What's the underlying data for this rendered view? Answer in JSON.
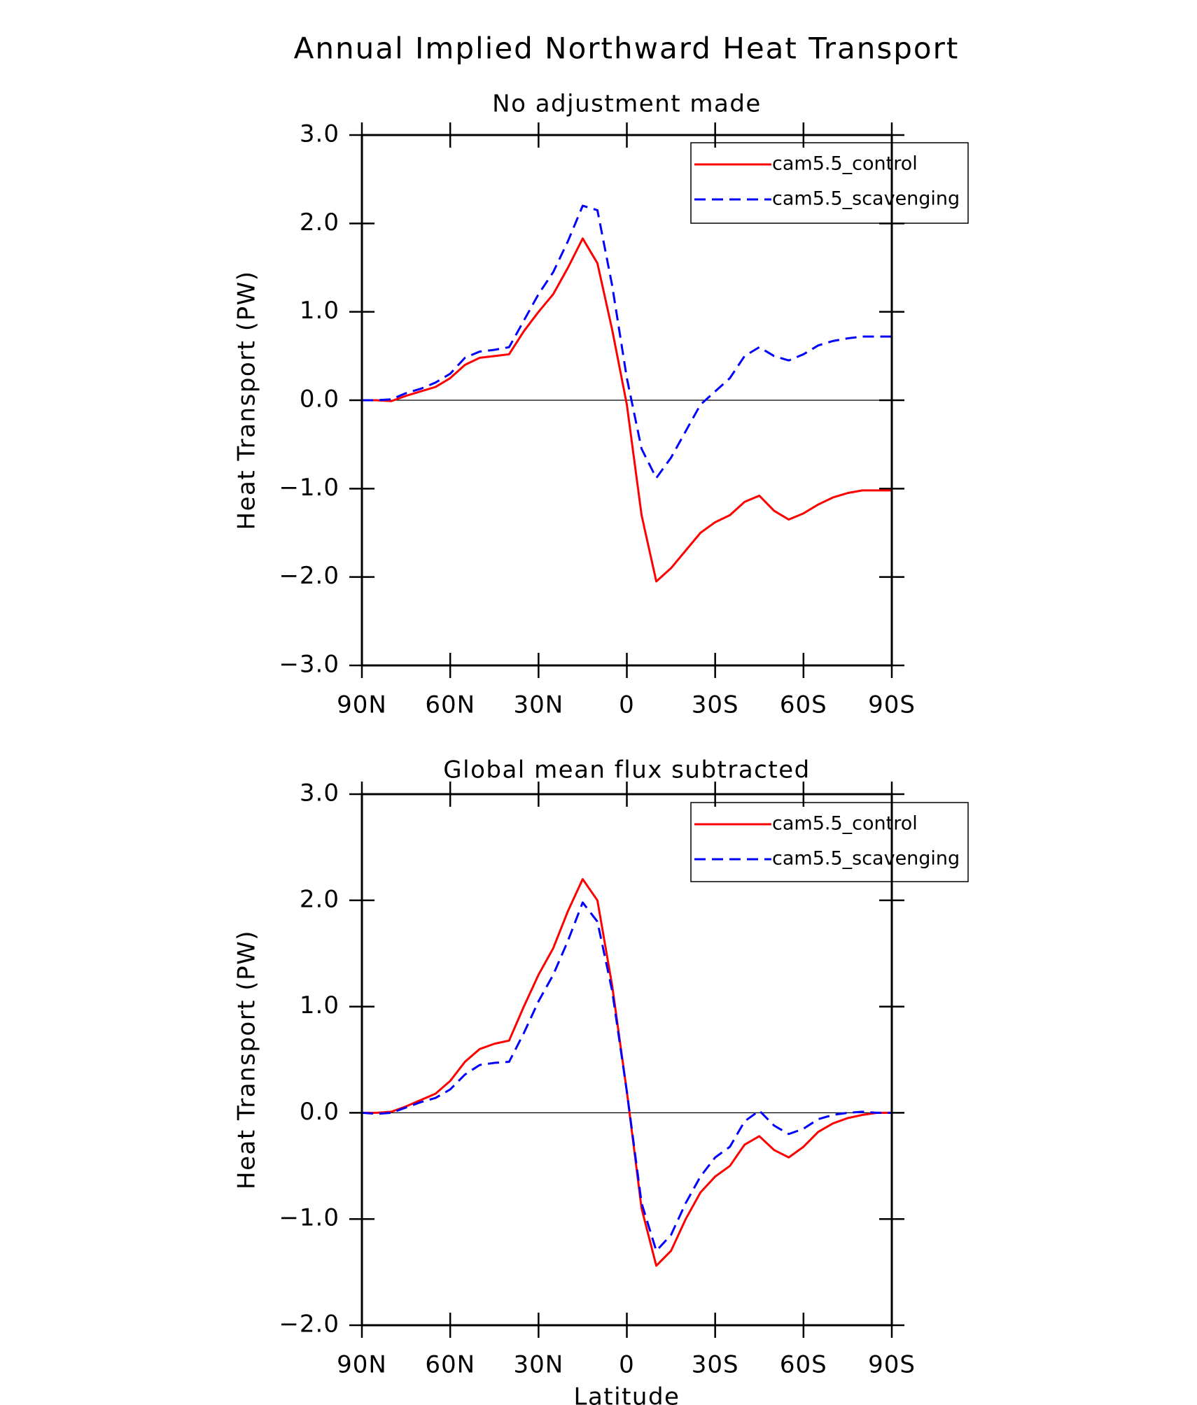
{
  "title": "Annual Implied Northward Heat Transport",
  "chart_data": [
    {
      "type": "line",
      "subtitle": "No adjustment made",
      "ylabel": "Heat Transport (PW)",
      "x": [
        90,
        85,
        80,
        75,
        70,
        65,
        60,
        55,
        50,
        45,
        40,
        35,
        30,
        25,
        20,
        15,
        10,
        5,
        0,
        -5,
        -10,
        -15,
        -20,
        -25,
        -30,
        -35,
        -40,
        -45,
        -50,
        -55,
        -60,
        -65,
        -70,
        -75,
        -80,
        -85,
        -90
      ],
      "xlim": [
        90,
        -90
      ],
      "xticks": [
        {
          "value": 90,
          "label": "90N"
        },
        {
          "value": 60,
          "label": "60N"
        },
        {
          "value": 30,
          "label": "30N"
        },
        0,
        {
          "value": -30,
          "label": "30S"
        },
        {
          "value": -60,
          "label": "60S"
        },
        {
          "value": -90,
          "label": "90S"
        }
      ],
      "ylim": [
        -3,
        3
      ],
      "yticks": [
        {
          "value": -3,
          "label": "−3.0"
        },
        {
          "value": -2,
          "label": "−2.0"
        },
        {
          "value": -1,
          "label": "−1.0"
        },
        {
          "value": 0,
          "label": "0.0"
        },
        {
          "value": 1,
          "label": "1.0"
        },
        {
          "value": 2,
          "label": "2.0"
        },
        {
          "value": 3,
          "label": "3.0"
        }
      ],
      "zero_line": true,
      "legend": "top-right",
      "series": [
        {
          "name": "cam5.5_control",
          "color": "#ff0000",
          "dash": "solid",
          "values": [
            0,
            0,
            -0.01,
            0.05,
            0.1,
            0.15,
            0.25,
            0.4,
            0.48,
            0.5,
            0.52,
            0.78,
            1.0,
            1.2,
            1.5,
            1.83,
            1.55,
            0.8,
            -0.05,
            -1.3,
            -2.05,
            -1.9,
            -1.7,
            -1.5,
            -1.38,
            -1.3,
            -1.15,
            -1.08,
            -1.25,
            -1.35,
            -1.28,
            -1.18,
            -1.1,
            -1.05,
            -1.02,
            -1.02,
            -1.02
          ]
        },
        {
          "name": "cam5.5_scavenging",
          "color": "#0000ff",
          "dash": "dashed",
          "values": [
            0,
            0,
            0.01,
            0.08,
            0.13,
            0.2,
            0.3,
            0.48,
            0.55,
            0.57,
            0.6,
            0.9,
            1.2,
            1.45,
            1.8,
            2.2,
            2.15,
            1.3,
            0.25,
            -0.55,
            -0.88,
            -0.65,
            -0.35,
            -0.05,
            0.1,
            0.25,
            0.5,
            0.6,
            0.5,
            0.45,
            0.52,
            0.62,
            0.67,
            0.7,
            0.72,
            0.72,
            0.72
          ]
        }
      ]
    },
    {
      "type": "line",
      "subtitle": "Global mean flux subtracted",
      "ylabel": "Heat Transport (PW)",
      "xlabel": "Latitude",
      "x": [
        90,
        85,
        80,
        75,
        70,
        65,
        60,
        55,
        50,
        45,
        40,
        35,
        30,
        25,
        20,
        15,
        10,
        5,
        0,
        -5,
        -10,
        -15,
        -20,
        -25,
        -30,
        -35,
        -40,
        -45,
        -50,
        -55,
        -60,
        -65,
        -70,
        -75,
        -80,
        -85,
        -90
      ],
      "xlim": [
        90,
        -90
      ],
      "xticks": [
        {
          "value": 90,
          "label": "90N"
        },
        {
          "value": 60,
          "label": "60N"
        },
        {
          "value": 30,
          "label": "30N"
        },
        0,
        {
          "value": -30,
          "label": "30S"
        },
        {
          "value": -60,
          "label": "60S"
        },
        {
          "value": -90,
          "label": "90S"
        }
      ],
      "ylim": [
        -2,
        3
      ],
      "yticks": [
        {
          "value": -2,
          "label": "−2.0"
        },
        {
          "value": -1,
          "label": "−1.0"
        },
        {
          "value": 0,
          "label": "0.0"
        },
        {
          "value": 1,
          "label": "1.0"
        },
        {
          "value": 2,
          "label": "2.0"
        },
        {
          "value": 3,
          "label": "3.0"
        }
      ],
      "zero_line": true,
      "legend": "top-right",
      "series": [
        {
          "name": "cam5.5_control",
          "color": "#ff0000",
          "dash": "solid",
          "values": [
            0,
            0,
            0.01,
            0.06,
            0.12,
            0.18,
            0.3,
            0.48,
            0.6,
            0.65,
            0.68,
            1.0,
            1.3,
            1.55,
            1.9,
            2.2,
            2.0,
            1.2,
            0.2,
            -0.9,
            -1.44,
            -1.3,
            -1.0,
            -0.75,
            -0.6,
            -0.5,
            -0.3,
            -0.22,
            -0.35,
            -0.42,
            -0.32,
            -0.18,
            -0.1,
            -0.05,
            -0.02,
            0,
            0
          ]
        },
        {
          "name": "cam5.5_scavenging",
          "color": "#0000ff",
          "dash": "dashed",
          "values": [
            0,
            -0.01,
            0,
            0.05,
            0.1,
            0.14,
            0.22,
            0.36,
            0.45,
            0.47,
            0.48,
            0.75,
            1.05,
            1.3,
            1.62,
            1.98,
            1.8,
            1.15,
            0.2,
            -0.85,
            -1.3,
            -1.15,
            -0.85,
            -0.6,
            -0.42,
            -0.32,
            -0.08,
            0.02,
            -0.12,
            -0.2,
            -0.15,
            -0.06,
            -0.02,
            0,
            0.01,
            0,
            0
          ]
        }
      ]
    }
  ]
}
